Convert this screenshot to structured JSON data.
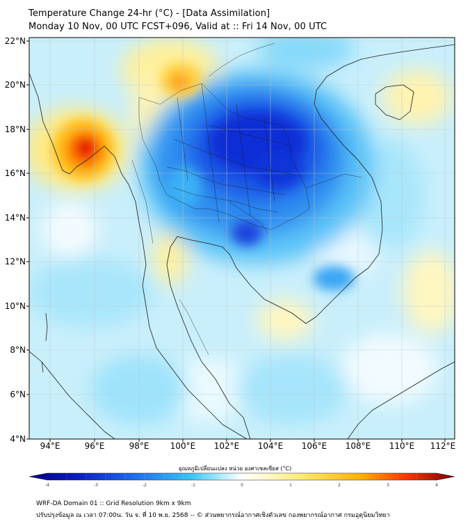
{
  "title": {
    "line1": "Temperature Change 24-hr (°C) - [Data Assimilation]",
    "line2": "Monday 10 Nov, 00 UTC FCST+096, Valid at :: Fri 14 Nov, 00 UTC"
  },
  "axes": {
    "lon_ticks": [
      "94°E",
      "96°E",
      "98°E",
      "100°E",
      "102°E",
      "104°E",
      "106°E",
      "108°E",
      "110°E",
      "112°E"
    ],
    "lat_ticks": [
      "22°N",
      "20°N",
      "18°N",
      "16°N",
      "14°N",
      "12°N",
      "10°N",
      "8°N",
      "6°N",
      "4°N"
    ]
  },
  "colorbar": {
    "label": "อุณหภูมิเปลี่ยนแปลง หน่วย องศาเซลเซียส (°C)",
    "ticks": [
      "-4",
      "-3",
      "-2",
      "-1",
      "0",
      "1",
      "2",
      "3",
      "4"
    ],
    "colors": {
      "strong_cold": "#000080",
      "cold": "#1f49e0",
      "cool": "#34c3ff",
      "neutral": "#ffffff",
      "warm": "#fff18c",
      "hot": "#ff8a00",
      "strong_hot": "#7a0000"
    }
  },
  "footer": {
    "line1": "WRF-DA Domain 01 :: Grid Resolution 9km x 9km",
    "line2": "ปรับปรุงข้อมูล ณ เวลา 07:00น. วัน จ. ที่ 10 พ.ย. 2568 -- © ส่วนพยากรณ์อากาศเชิงตัวเลข กองพยากรณ์อากาศ กรมอุตุนิยมวิทยา"
  }
}
